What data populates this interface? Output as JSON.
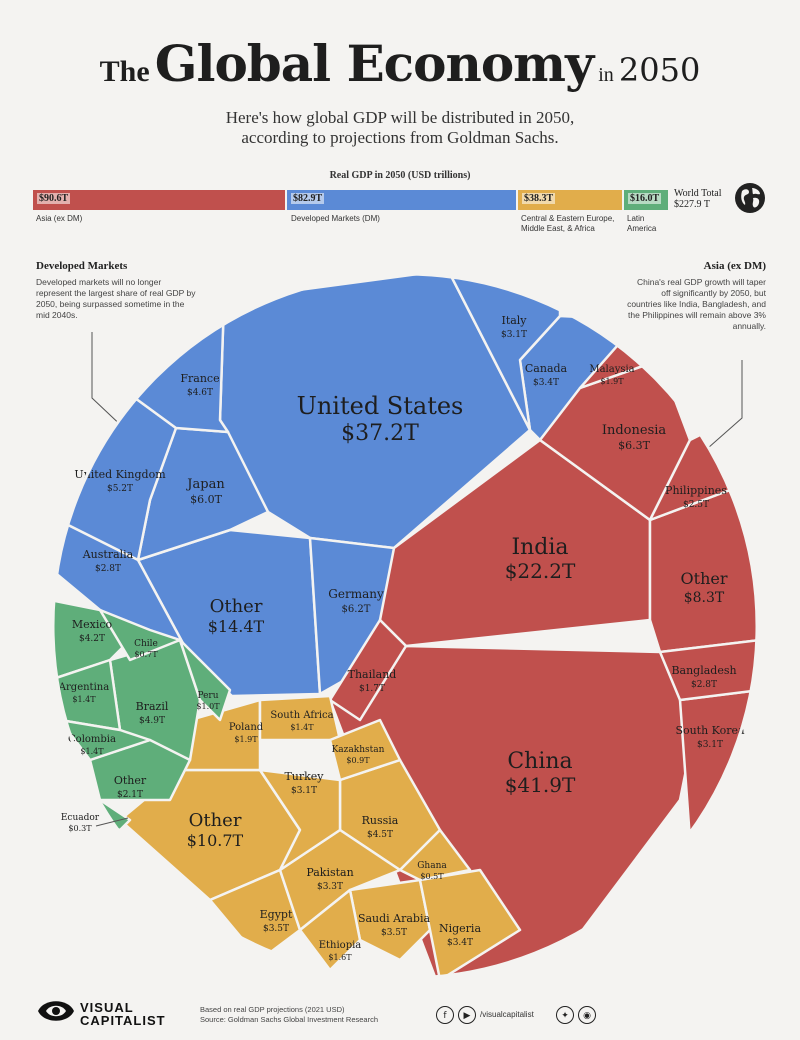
{
  "header": {
    "title_the": "The",
    "title_main": "Global Economy",
    "title_in": "in",
    "title_year": "2050",
    "subtitle_line1": "Here's how global GDP will be distributed in 2050,",
    "subtitle_line2": "according to projections from Goldman Sachs."
  },
  "summary_bar": {
    "title": "Real GDP in 2050 (USD trillions)",
    "segments": [
      {
        "value": "$90.6T",
        "label": "Asia (ex DM)",
        "color": "#c0504d"
      },
      {
        "value": "$82.9T",
        "label": "Developed Markets (DM)",
        "color": "#5b8ad6"
      },
      {
        "value": "$38.3T",
        "label": "Central & Eastern Europe, Middle East, & Africa",
        "color": "#e1ad4b"
      },
      {
        "value": "$16.0T",
        "label": "Latin America",
        "color": "#5fae7a"
      }
    ],
    "world_total_label": "World Total",
    "world_total_value": "$227.9 T"
  },
  "annotations": {
    "developed_title": "Developed Markets",
    "developed_text": "Developed markets will no longer represent the largest share of real GDP by 2050, being surpassed sometime in the mid 2040s.",
    "asia_title": "Asia (ex DM)",
    "asia_text": "China's real GDP growth will taper off significantly by 2050, but countries like India, Bangladesh, and the Philippines will remain above 3% annually."
  },
  "chart_data": {
    "type": "voronoi-pie",
    "title": "The Global Economy in 2050",
    "unit": "USD trillions",
    "groups": [
      {
        "name": "Developed Markets",
        "color": "#5b8ad6",
        "countries": [
          {
            "name": "United States",
            "value": "$37.2T"
          },
          {
            "name": "Other",
            "value": "$14.4T"
          },
          {
            "name": "Germany",
            "value": "$6.2T"
          },
          {
            "name": "Japan",
            "value": "$6.0T"
          },
          {
            "name": "United Kingdom",
            "value": "$5.2T"
          },
          {
            "name": "France",
            "value": "$4.6T"
          },
          {
            "name": "Canada",
            "value": "$3.4T"
          },
          {
            "name": "Italy",
            "value": "$3.1T"
          },
          {
            "name": "Australia",
            "value": "$2.8T"
          }
        ]
      },
      {
        "name": "Asia (ex DM)",
        "color": "#c0504d",
        "countries": [
          {
            "name": "China",
            "value": "$41.9T"
          },
          {
            "name": "India",
            "value": "$22.2T"
          },
          {
            "name": "Other",
            "value": "$8.3T"
          },
          {
            "name": "Indonesia",
            "value": "$6.3T"
          },
          {
            "name": "South Korea",
            "value": "$3.1T"
          },
          {
            "name": "Bangladesh",
            "value": "$2.8T"
          },
          {
            "name": "Philippines",
            "value": "$2.5T"
          },
          {
            "name": "Malaysia",
            "value": "$1.9T"
          },
          {
            "name": "Thailand",
            "value": "$1.7T"
          }
        ]
      },
      {
        "name": "Central & Eastern Europe, Middle East, & Africa",
        "color": "#e1ad4b",
        "countries": [
          {
            "name": "Other",
            "value": "$10.7T"
          },
          {
            "name": "Russia",
            "value": "$4.5T"
          },
          {
            "name": "Egypt",
            "value": "$3.5T"
          },
          {
            "name": "Saudi Arabia",
            "value": "$3.5T"
          },
          {
            "name": "Nigeria",
            "value": "$3.4T"
          },
          {
            "name": "Pakistan",
            "value": "$3.3T"
          },
          {
            "name": "Turkey",
            "value": "$3.1T"
          },
          {
            "name": "Poland",
            "value": "$1.9T"
          },
          {
            "name": "Ethiopia",
            "value": "$1.6T"
          },
          {
            "name": "South Africa",
            "value": "$1.4T"
          },
          {
            "name": "Kazakhstan",
            "value": "$0.9T"
          },
          {
            "name": "Ghana",
            "value": "$0.5T"
          }
        ]
      },
      {
        "name": "Latin America",
        "color": "#5fae7a",
        "countries": [
          {
            "name": "Brazil",
            "value": "$4.9T"
          },
          {
            "name": "Mexico",
            "value": "$4.2T"
          },
          {
            "name": "Other",
            "value": "$2.1T"
          },
          {
            "name": "Argentina",
            "value": "$1.4T"
          },
          {
            "name": "Colombia",
            "value": "$1.4T"
          },
          {
            "name": "Peru",
            "value": "$1.0T"
          },
          {
            "name": "Chile",
            "value": "$0.7T"
          },
          {
            "name": "Ecuador",
            "value": "$0.3T"
          }
        ]
      }
    ]
  },
  "footer": {
    "logo_line1": "VISUAL",
    "logo_line2": "CAPITALIST",
    "note_line1": "Based on real GDP projections (2021 USD)",
    "note_line2": "Source: Goldman Sachs Global Investment Research",
    "handle": "/visualcapitalist"
  }
}
